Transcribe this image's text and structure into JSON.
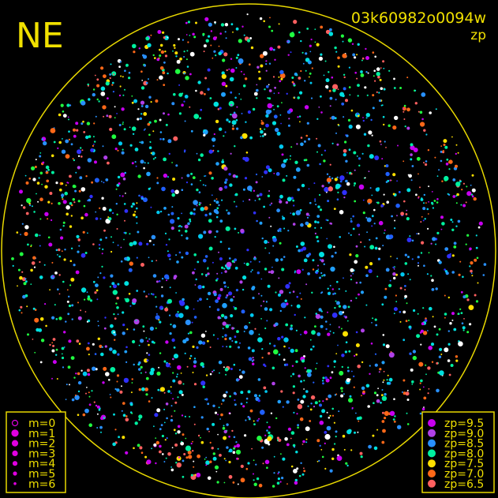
{
  "header": {
    "direction": "NE",
    "frame_id": "03k60982o0094w",
    "quantity": "zp"
  },
  "colors": {
    "frame": "#e8d800",
    "background": "#000000",
    "m_legend_marker": "#e000e0"
  },
  "chart_data": {
    "type": "scatter",
    "title": "",
    "description_grid": false,
    "size_legend": {
      "placement": "bottom-left",
      "entries": [
        "m=0",
        "m=1",
        "m=2",
        "m=3",
        "m=4",
        "m=5",
        "m=6"
      ]
    },
    "color_legend": {
      "placement": "bottom-right",
      "entries": [
        {
          "label": "zp=9.5",
          "color": "#c800f0"
        },
        {
          "label": "zp=9.0",
          "color": "#b040e8"
        },
        {
          "label": "zp=8.5",
          "color": "#2890ff"
        },
        {
          "label": "zp=8.0",
          "color": "#00f0a0"
        },
        {
          "label": "zp=7.5",
          "color": "#ffe000"
        },
        {
          "label": "zp=7.0",
          "color": "#ff6818"
        },
        {
          "label": "zp=6.5",
          "color": "#ff6060"
        }
      ]
    }
  }
}
